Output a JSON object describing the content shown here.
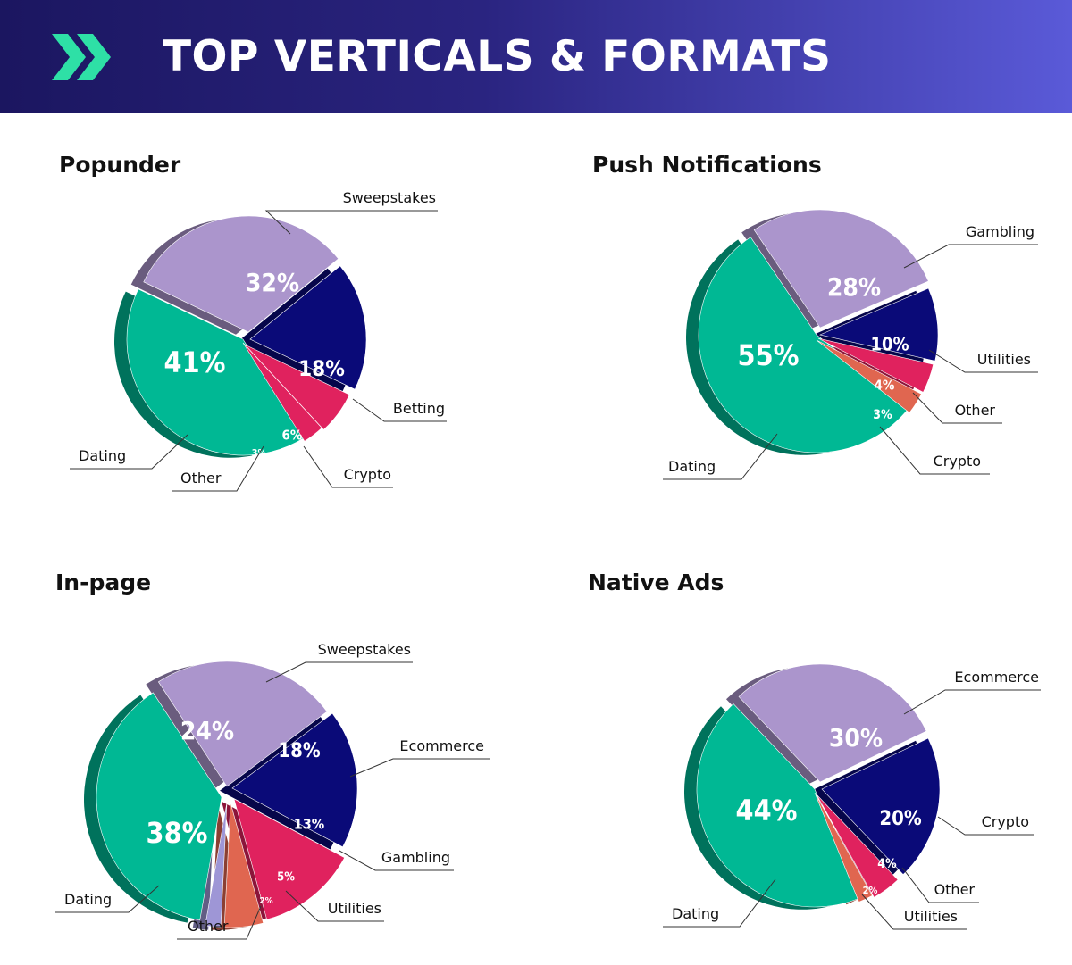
{
  "header": {
    "title": "TOP VERTICALS & FORMATS",
    "icon": "double-chevron-right-icon",
    "icon_color": "#2ee0a6"
  },
  "colors": {
    "Dating": "#00b894",
    "Sweepstakes": "#ab95cc",
    "Gambling": "#ab95cc",
    "Ecommerce": "#ab95cc",
    "Betting": "#0a0a78",
    "Utilities": "#0a0a78",
    "Crypto": "#e0225e",
    "Other": "#e06650",
    "Other2": "#9e96d6"
  },
  "chart_data": [
    {
      "type": "pie",
      "title": "Popunder",
      "slices": [
        {
          "label": "Dating",
          "value": 41,
          "text": "41%"
        },
        {
          "label": "Sweepstakes",
          "value": 32,
          "text": "32%"
        },
        {
          "label": "Betting",
          "value": 18,
          "text": "18%"
        },
        {
          "label": "Crypto",
          "value": 6,
          "text": "6%"
        },
        {
          "label": "Other",
          "value": 3,
          "text": "3%"
        }
      ]
    },
    {
      "type": "pie",
      "title": "Push Notifications",
      "slices": [
        {
          "label": "Dating",
          "value": 55,
          "text": "55%"
        },
        {
          "label": "Gambling",
          "value": 28,
          "text": "28%"
        },
        {
          "label": "Utilities",
          "value": 10,
          "text": "10%"
        },
        {
          "label": "Other",
          "value": 4,
          "text": "4%"
        },
        {
          "label": "Crypto",
          "value": 3,
          "text": "3%"
        }
      ]
    },
    {
      "type": "pie",
      "title": "In-page",
      "slices": [
        {
          "label": "Dating",
          "value": 38,
          "text": "38%"
        },
        {
          "label": "Sweepstakes",
          "value": 24,
          "text": "24%"
        },
        {
          "label": "Ecommerce",
          "value": 18,
          "text": "18%"
        },
        {
          "label": "Gambling",
          "value": 13,
          "text": "13%"
        },
        {
          "label": "Utilities",
          "value": 5,
          "text": "5%"
        },
        {
          "label": "Other",
          "value": 2,
          "text": "2%"
        }
      ]
    },
    {
      "type": "pie",
      "title": "Native Ads",
      "slices": [
        {
          "label": "Dating",
          "value": 44,
          "text": "44%"
        },
        {
          "label": "Ecommerce",
          "value": 30,
          "text": "30%"
        },
        {
          "label": "Crypto",
          "value": 20,
          "text": "20%"
        },
        {
          "label": "Other",
          "value": 4,
          "text": "4%"
        },
        {
          "label": "Utilities",
          "value": 2,
          "text": "2%"
        }
      ]
    }
  ]
}
